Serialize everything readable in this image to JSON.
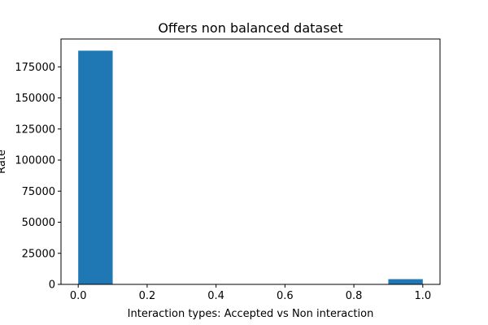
{
  "chart_data": {
    "type": "bar",
    "title": "Offers non balanced dataset",
    "xlabel": "Interaction types: Accepted vs Non interaction",
    "ylabel": "Rate",
    "bars": [
      {
        "x_start": 0.0,
        "x_end": 0.1,
        "value": 188000
      },
      {
        "x_start": 0.9,
        "x_end": 1.0,
        "value": 4200
      }
    ],
    "xlim": [
      -0.05,
      1.05
    ],
    "ylim": [
      0,
      197400
    ],
    "xticks": [
      0.0,
      0.2,
      0.4,
      0.6,
      0.8,
      1.0
    ],
    "xtick_labels": [
      "0.0",
      "0.2",
      "0.4",
      "0.6",
      "0.8",
      "1.0"
    ],
    "yticks": [
      0,
      25000,
      50000,
      75000,
      100000,
      125000,
      150000,
      175000
    ],
    "ytick_labels": [
      "0",
      "25000",
      "50000",
      "75000",
      "100000",
      "125000",
      "150000",
      "175000"
    ],
    "grid": false,
    "bar_color": "#1f77b4"
  }
}
